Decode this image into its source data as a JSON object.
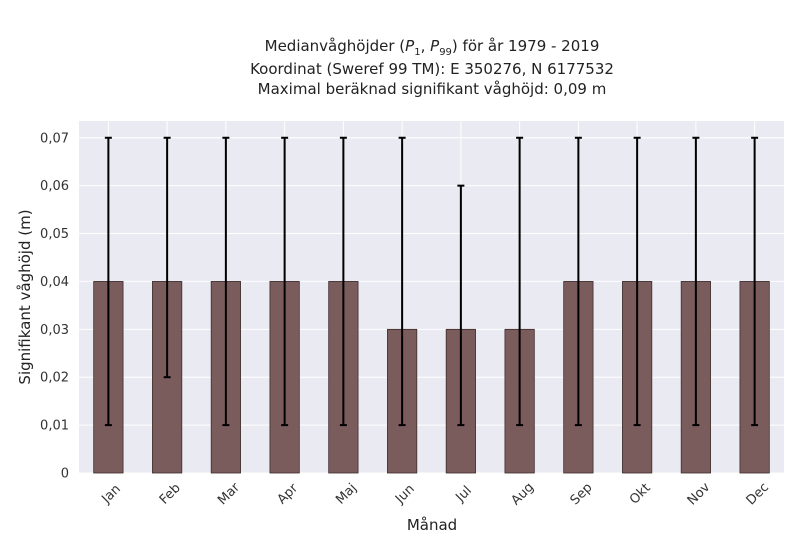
{
  "chart_data": {
    "type": "bar",
    "title_lines": [
      "Medianvåghöjder (P1, P99) för år 1979 - 2019",
      "Koordinat (Sweref 99 TM): E 350276, N 6177532",
      "Maximal beräknad signifikant våghöjd: 0,09 m"
    ],
    "title_parts": {
      "prefix": "Medianvåghöjder (",
      "p1_main": "P",
      "p1_sub": "1",
      "sep": ", ",
      "p99_main": "P",
      "p99_sub": "99",
      "suffix": ") för år 1979 - 2019"
    },
    "xlabel": "Månad",
    "ylabel": "Signifikant våghöjd (m)",
    "categories": [
      "Jan",
      "Feb",
      "Mar",
      "Apr",
      "Maj",
      "Jun",
      "Jul",
      "Aug",
      "Sep",
      "Okt",
      "Nov",
      "Dec"
    ],
    "values": [
      0.04,
      0.04,
      0.04,
      0.04,
      0.04,
      0.03,
      0.03,
      0.03,
      0.04,
      0.04,
      0.04,
      0.04
    ],
    "p1": [
      0.01,
      0.02,
      0.01,
      0.01,
      0.01,
      0.01,
      0.01,
      0.01,
      0.01,
      0.01,
      0.01,
      0.01
    ],
    "p99": [
      0.07,
      0.07,
      0.07,
      0.07,
      0.07,
      0.07,
      0.06,
      0.07,
      0.07,
      0.07,
      0.07,
      0.07
    ],
    "yticks": [
      0,
      0.01,
      0.02,
      0.03,
      0.04,
      0.05,
      0.06,
      0.07
    ],
    "ytick_labels": [
      "0",
      "0,01",
      "0,02",
      "0,03",
      "0,04",
      "0,05",
      "0,06",
      "0,07"
    ],
    "ylim": [
      0,
      0.0735
    ],
    "grid": true,
    "colors": {
      "bar": "#7b5c5c",
      "bar_edge": "#3d2c2c",
      "errorbar": "#000000",
      "plot_bg": "#eaeaf2",
      "grid": "#ffffff"
    }
  }
}
